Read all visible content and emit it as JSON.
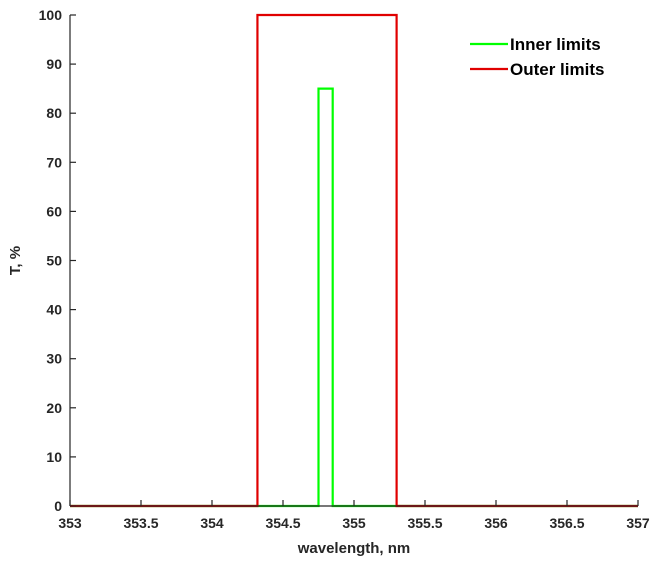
{
  "chart_data": {
    "type": "line",
    "title": "",
    "xlabel": "wavelength, nm",
    "ylabel": "T, %",
    "xlim": [
      353,
      357
    ],
    "ylim": [
      0,
      100
    ],
    "x_ticks": [
      353,
      353.5,
      354,
      354.5,
      355,
      355.5,
      356,
      356.5,
      357
    ],
    "x_tick_labels": [
      "353",
      "353.5",
      "354",
      "354.5",
      "355",
      "355.5",
      "356",
      "356.5",
      "357"
    ],
    "y_ticks": [
      0,
      10,
      20,
      30,
      40,
      50,
      60,
      70,
      80,
      90,
      100
    ],
    "y_tick_labels": [
      "0",
      "10",
      "20",
      "30",
      "40",
      "50",
      "60",
      "70",
      "80",
      "90",
      "100"
    ],
    "grid": false,
    "legend_position": "top-right",
    "series": [
      {
        "name": "Inner limits",
        "color": "#00ff00",
        "x": [
          353,
          354.75,
          354.75,
          354.85,
          354.85,
          357
        ],
        "y": [
          0,
          0,
          85,
          85,
          0,
          0
        ]
      },
      {
        "name": "Outer limits",
        "color": "#e00000",
        "x": [
          353,
          354.32,
          354.32,
          355.3,
          355.3,
          357
        ],
        "y": [
          0,
          0,
          100,
          100,
          0,
          0
        ]
      }
    ]
  }
}
